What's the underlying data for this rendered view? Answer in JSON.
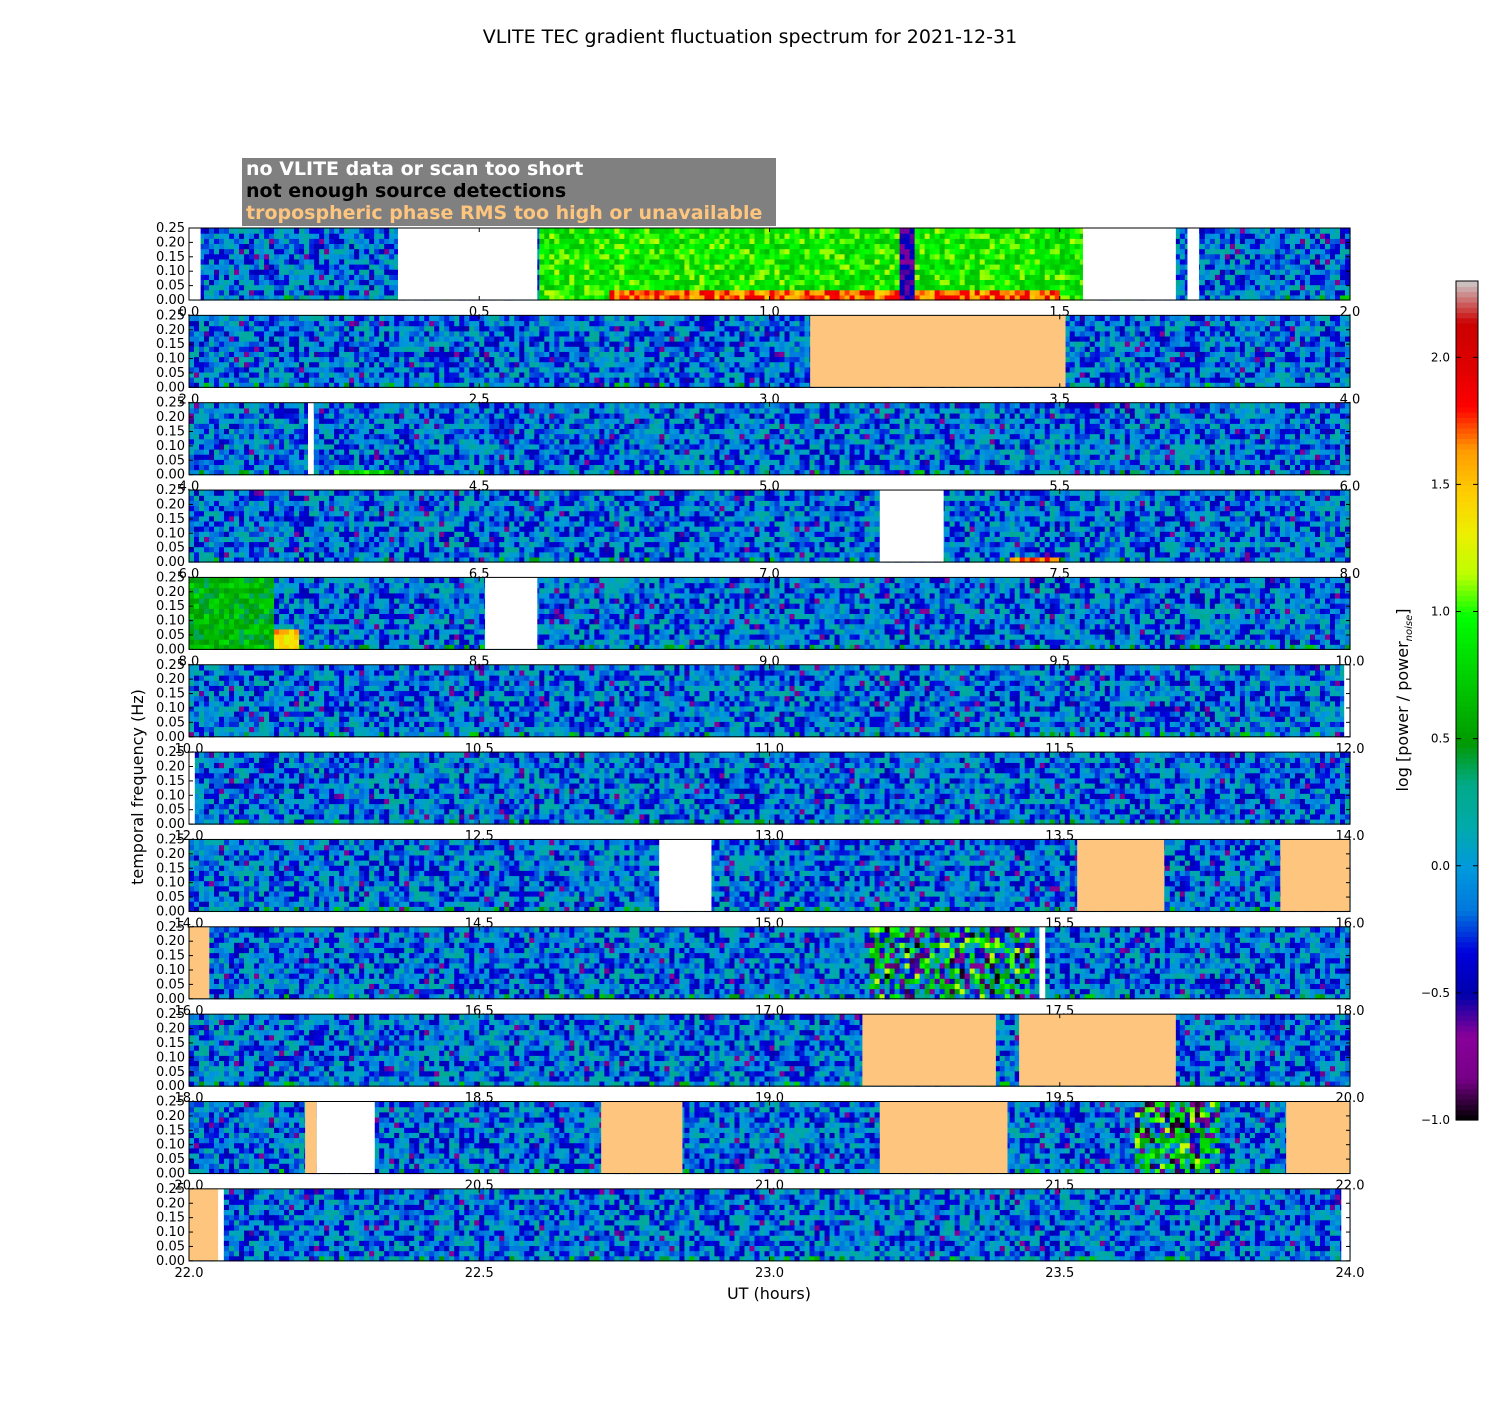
{
  "figure": {
    "title": "VLITE TEC gradient fluctuation spectrum for 2021-12-31",
    "ylabel": "temporal frequency (Hz)",
    "xlabel": "UT (hours)"
  },
  "legend": {
    "entries": [
      {
        "label": "no VLITE data or scan too short",
        "color": "#ffffff"
      },
      {
        "label": "not enough source detections",
        "color": "#000000"
      },
      {
        "label": "tropospheric phase RMS too high or unavailable",
        "color": "#fec57f"
      }
    ],
    "background": "#808080"
  },
  "colorbar": {
    "label": "log [power / power",
    "label_sub": "noise",
    "label_close": "]",
    "vmin": -1.0,
    "vmax": 2.3,
    "tick_values": [
      -1.0,
      -0.5,
      0.0,
      0.5,
      1.0,
      1.5,
      2.0
    ],
    "tick_labels": [
      "−1.0",
      "−0.5",
      "0.0",
      "0.5",
      "1.0",
      "1.5",
      "2.0"
    ],
    "colormap": "nipy_spectral"
  },
  "chart_data": {
    "type": "heatmap",
    "y_ticks": [
      "0.00",
      "0.05",
      "0.10",
      "0.15",
      "0.20",
      "0.25"
    ],
    "y_tick_values": [
      0.0,
      0.05,
      0.1,
      0.15,
      0.2,
      0.25
    ],
    "ylim": [
      0.0,
      0.25
    ],
    "panels": [
      {
        "xlim": [
          0.0,
          2.0
        ],
        "x_ticks": [
          "0.0",
          "0.5",
          "1.0",
          "1.5",
          "2.0"
        ],
        "masks": [
          {
            "type": "no_data",
            "start": 0.0,
            "end": 0.02
          },
          {
            "type": "no_data",
            "start": 0.36,
            "end": 0.6
          },
          {
            "type": "no_data",
            "start": 1.54,
            "end": 1.7
          },
          {
            "type": "no_data",
            "start": 1.72,
            "end": 1.74
          }
        ],
        "features": [
          {
            "start": 0.6,
            "end": 1.54,
            "fmax": 0.25,
            "level": 0.9
          },
          {
            "start": 0.72,
            "end": 1.5,
            "fmax": 0.04,
            "level": 1.7
          }
        ],
        "dark_columns": [
          1.24
        ]
      },
      {
        "xlim": [
          2.0,
          4.0
        ],
        "x_ticks": [
          "2.0",
          "2.5",
          "3.0",
          "3.5",
          "4.0"
        ],
        "masks": [
          {
            "type": "troposphere",
            "start": 3.07,
            "end": 3.51
          }
        ],
        "features": [],
        "dark_columns": []
      },
      {
        "xlim": [
          4.0,
          6.0
        ],
        "x_ticks": [
          "4.0",
          "4.5",
          "5.0",
          "5.5",
          "6.0"
        ],
        "masks": [
          {
            "type": "no_data",
            "start": 4.205,
            "end": 4.215
          }
        ],
        "features": [
          {
            "start": 4.25,
            "end": 4.35,
            "fmax": 0.02,
            "level": 0.8
          }
        ],
        "dark_columns": []
      },
      {
        "xlim": [
          6.0,
          8.0
        ],
        "x_ticks": [
          "6.0",
          "6.5",
          "7.0",
          "7.5",
          "8.0"
        ],
        "masks": [
          {
            "type": "no_data",
            "start": 7.19,
            "end": 7.3
          }
        ],
        "features": [
          {
            "start": 7.41,
            "end": 7.5,
            "fmax": 0.02,
            "level": 1.7
          }
        ],
        "dark_columns": []
      },
      {
        "xlim": [
          8.0,
          10.0
        ],
        "x_ticks": [
          "8.0",
          "8.5",
          "9.0",
          "9.5",
          "10.0"
        ],
        "masks": [
          {
            "type": "no_data",
            "start": 8.51,
            "end": 8.6
          }
        ],
        "features": [
          {
            "start": 8.08,
            "end": 8.19,
            "fmax": 0.07,
            "level": 1.5
          },
          {
            "start": 8.0,
            "end": 8.15,
            "fmax": 0.25,
            "level": 0.6
          }
        ],
        "dark_columns": []
      },
      {
        "xlim": [
          10.0,
          12.0
        ],
        "x_ticks": [
          "10.0",
          "10.5",
          "11.0",
          "11.5",
          "12.0"
        ],
        "masks": [
          {
            "type": "no_data",
            "start": 11.99,
            "end": 12.0
          }
        ],
        "features": [],
        "dark_columns": []
      },
      {
        "xlim": [
          12.0,
          14.0
        ],
        "x_ticks": [
          "12.0",
          "12.5",
          "13.0",
          "13.5",
          "14.0"
        ],
        "masks": [
          {
            "type": "no_data",
            "start": 12.0,
            "end": 12.01
          }
        ],
        "features": [],
        "dark_columns": []
      },
      {
        "xlim": [
          14.0,
          16.0
        ],
        "x_ticks": [
          "14.0",
          "14.5",
          "15.0",
          "15.5",
          "16.0"
        ],
        "masks": [
          {
            "type": "no_data",
            "start": 14.81,
            "end": 14.9
          },
          {
            "type": "troposphere",
            "start": 15.53,
            "end": 15.68
          },
          {
            "type": "troposphere",
            "start": 15.88,
            "end": 16.0
          }
        ],
        "features": [],
        "dark_columns": []
      },
      {
        "xlim": [
          16.0,
          18.0
        ],
        "x_ticks": [
          "16.0",
          "16.5",
          "17.0",
          "17.5",
          "18.0"
        ],
        "masks": [
          {
            "type": "troposphere",
            "start": 16.0,
            "end": 16.035
          },
          {
            "type": "no_data",
            "start": 17.465,
            "end": 17.475
          }
        ],
        "features": [
          {
            "start": 17.17,
            "end": 17.46,
            "fmax": 0.25,
            "level": 0.3,
            "speckle": true
          }
        ],
        "dark_columns": []
      },
      {
        "xlim": [
          18.0,
          20.0
        ],
        "x_ticks": [
          "18.0",
          "18.5",
          "19.0",
          "19.5",
          "20.0"
        ],
        "masks": [
          {
            "type": "troposphere",
            "start": 19.16,
            "end": 19.39
          },
          {
            "type": "troposphere",
            "start": 19.43,
            "end": 19.7
          }
        ],
        "features": [],
        "dark_columns": []
      },
      {
        "xlim": [
          20.0,
          22.0
        ],
        "x_ticks": [
          "20.0",
          "20.5",
          "21.0",
          "21.5",
          "22.0"
        ],
        "masks": [
          {
            "type": "troposphere",
            "start": 20.2,
            "end": 20.22
          },
          {
            "type": "no_data",
            "start": 20.22,
            "end": 20.32
          },
          {
            "type": "troposphere",
            "start": 20.71,
            "end": 20.85
          },
          {
            "type": "troposphere",
            "start": 21.19,
            "end": 21.41
          },
          {
            "type": "troposphere",
            "start": 21.89,
            "end": 22.0
          }
        ],
        "features": [
          {
            "start": 21.63,
            "end": 21.78,
            "fmax": 0.25,
            "level": 0.4,
            "speckle": true
          }
        ],
        "dark_columns": []
      },
      {
        "xlim": [
          22.0,
          24.0
        ],
        "x_ticks": [
          "22.0",
          "22.5",
          "23.0",
          "23.5",
          "24.0"
        ],
        "masks": [
          {
            "type": "troposphere",
            "start": 22.0,
            "end": 22.05
          },
          {
            "type": "no_data",
            "start": 22.05,
            "end": 22.06
          },
          {
            "type": "no_data",
            "start": 23.985,
            "end": 24.0
          }
        ],
        "features": [],
        "dark_columns": []
      }
    ]
  }
}
